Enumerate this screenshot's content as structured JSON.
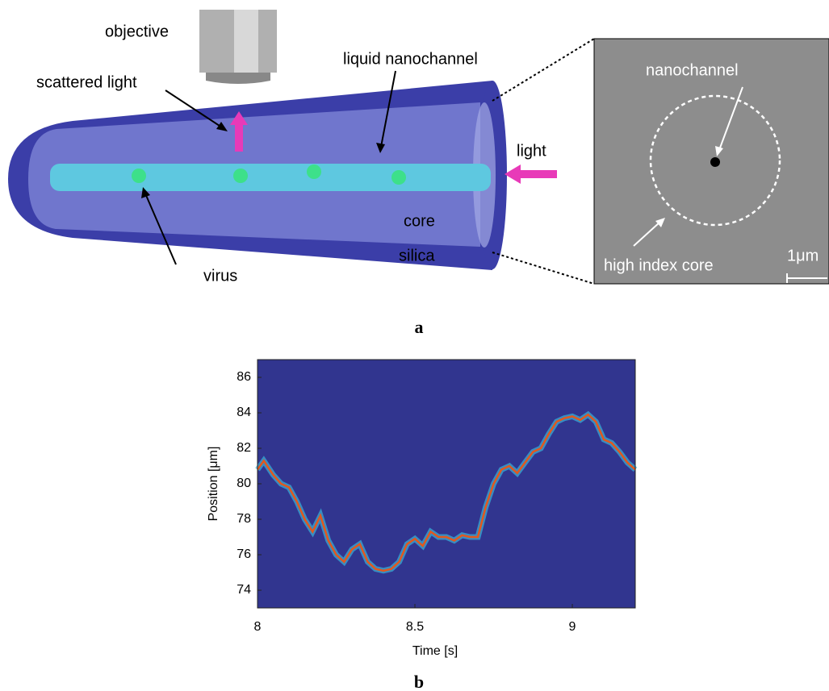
{
  "diagram": {
    "labels": {
      "objective": "objective",
      "scattered": "scattered light",
      "channel": "liquid nanochannel",
      "light": "light",
      "core": "core",
      "silica": "silica",
      "virus": "virus"
    },
    "inset": {
      "nanochannel": "nanochannel",
      "core": "high index core",
      "scale": "1μm"
    }
  },
  "panel_labels": [
    "a",
    "b"
  ],
  "chart_data": {
    "type": "line",
    "xlabel": "Time [s]",
    "ylabel": "Position [μm]",
    "x": [
      8.0,
      8.02,
      8.05,
      8.075,
      8.1,
      8.125,
      8.15,
      8.175,
      8.2,
      8.225,
      8.25,
      8.275,
      8.3,
      8.325,
      8.35,
      8.375,
      8.4,
      8.425,
      8.45,
      8.475,
      8.5,
      8.525,
      8.55,
      8.575,
      8.6,
      8.625,
      8.65,
      8.675,
      8.7,
      8.725,
      8.75,
      8.775,
      8.8,
      8.825,
      8.85,
      8.875,
      8.9,
      8.925,
      8.95,
      8.975,
      9.0,
      9.025,
      9.05,
      9.075,
      9.1,
      9.125,
      9.15,
      9.175,
      9.2
    ],
    "values": [
      80.8,
      81.3,
      80.5,
      80.0,
      79.8,
      79.0,
      78.0,
      77.3,
      78.2,
      76.8,
      76.0,
      75.6,
      76.3,
      76.6,
      75.6,
      75.2,
      75.1,
      75.2,
      75.6,
      76.6,
      76.9,
      76.5,
      77.3,
      77.0,
      77.0,
      76.8,
      77.1,
      77.0,
      77.0,
      78.7,
      80.0,
      80.8,
      81.0,
      80.6,
      81.2,
      81.8,
      82.0,
      82.8,
      83.5,
      83.7,
      83.8,
      83.6,
      83.9,
      83.5,
      82.5,
      82.3,
      81.8,
      81.2,
      80.8
    ],
    "color": "#e2581e",
    "background": "#31358f",
    "xlim": [
      8,
      9.2
    ],
    "xticks": [
      8,
      8.5,
      9
    ],
    "ylim": [
      73,
      87
    ],
    "yticks": [
      74,
      76,
      78,
      80,
      82,
      84,
      86
    ]
  }
}
